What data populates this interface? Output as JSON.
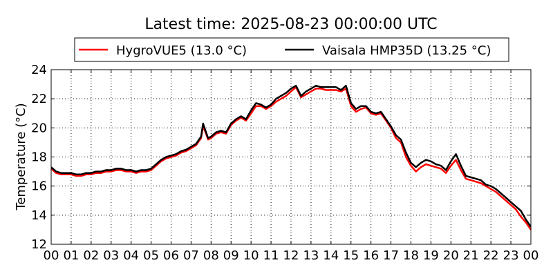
{
  "chart_data": {
    "type": "line",
    "title": "Latest time: 2025-08-23 00:00:00 UTC",
    "xlabel": "",
    "ylabel": "Temperature (°C)",
    "ylim": [
      12,
      24
    ],
    "xlim": [
      0,
      24
    ],
    "grid": true,
    "legend_position": "top",
    "x_ticks": [
      "00",
      "01",
      "02",
      "03",
      "04",
      "05",
      "06",
      "07",
      "08",
      "09",
      "10",
      "11",
      "12",
      "13",
      "14",
      "15",
      "16",
      "17",
      "18",
      "19",
      "20",
      "21",
      "22",
      "23",
      "00"
    ],
    "y_ticks": [
      "12",
      "14",
      "16",
      "18",
      "20",
      "22",
      "24"
    ],
    "x": [
      0,
      0.25,
      0.5,
      0.75,
      1,
      1.25,
      1.5,
      1.75,
      2,
      2.25,
      2.5,
      2.75,
      3,
      3.25,
      3.5,
      3.75,
      4,
      4.25,
      4.5,
      4.75,
      5,
      5.25,
      5.5,
      5.75,
      6,
      6.25,
      6.5,
      6.75,
      7,
      7.25,
      7.5,
      7.6,
      7.75,
      7.85,
      8,
      8.25,
      8.5,
      8.75,
      9,
      9.25,
      9.5,
      9.75,
      10,
      10.25,
      10.5,
      10.75,
      11,
      11.25,
      11.5,
      11.75,
      12,
      12.25,
      12.5,
      12.75,
      13,
      13.25,
      13.5,
      13.75,
      14,
      14.25,
      14.5,
      14.75,
      15,
      15.25,
      15.5,
      15.75,
      16,
      16.25,
      16.5,
      16.75,
      17,
      17.25,
      17.5,
      17.75,
      18,
      18.25,
      18.5,
      18.75,
      19,
      19.25,
      19.5,
      19.75,
      20,
      20.25,
      20.5,
      20.75,
      21,
      21.25,
      21.5,
      21.75,
      22,
      22.25,
      22.5,
      22.75,
      23,
      23.25,
      23.5,
      23.75,
      24
    ],
    "series": [
      {
        "name": "HygroVUE5 (13.0 °C)",
        "color": "#ff0000",
        "values": [
          17.2,
          16.9,
          16.8,
          16.8,
          16.8,
          16.7,
          16.7,
          16.8,
          16.8,
          16.9,
          16.9,
          17.0,
          17.0,
          17.1,
          17.1,
          17.0,
          17.0,
          16.9,
          17.0,
          17.0,
          17.1,
          17.4,
          17.7,
          17.9,
          18.0,
          18.1,
          18.3,
          18.4,
          18.6,
          18.8,
          19.3,
          20.1,
          19.6,
          19.2,
          19.3,
          19.6,
          19.7,
          19.6,
          20.2,
          20.5,
          20.7,
          20.5,
          21.0,
          21.5,
          21.5,
          21.3,
          21.5,
          21.8,
          22.0,
          22.2,
          22.5,
          22.8,
          22.1,
          22.3,
          22.5,
          22.7,
          22.7,
          22.6,
          22.6,
          22.6,
          22.5,
          22.7,
          21.5,
          21.1,
          21.3,
          21.4,
          21.0,
          20.9,
          21.0,
          20.5,
          20.0,
          19.3,
          19.0,
          18.0,
          17.4,
          17.0,
          17.3,
          17.5,
          17.4,
          17.3,
          17.2,
          16.9,
          17.4,
          17.8,
          17.1,
          16.5,
          16.4,
          16.3,
          16.2,
          16.0,
          15.8,
          15.6,
          15.3,
          15.0,
          14.7,
          14.4,
          13.9,
          13.5,
          13.0
        ]
      },
      {
        "name": "Vaisala HMP35D (13.25 °C)",
        "color": "#000000",
        "values": [
          17.3,
          17.0,
          16.9,
          16.9,
          16.9,
          16.8,
          16.8,
          16.9,
          16.9,
          17.0,
          17.0,
          17.1,
          17.1,
          17.2,
          17.2,
          17.1,
          17.1,
          17.0,
          17.1,
          17.1,
          17.2,
          17.5,
          17.8,
          18.0,
          18.1,
          18.2,
          18.4,
          18.5,
          18.7,
          18.9,
          19.4,
          20.3,
          19.7,
          19.3,
          19.4,
          19.7,
          19.8,
          19.7,
          20.3,
          20.6,
          20.8,
          20.6,
          21.2,
          21.7,
          21.6,
          21.4,
          21.6,
          22.0,
          22.2,
          22.4,
          22.7,
          22.9,
          22.2,
          22.5,
          22.7,
          22.9,
          22.8,
          22.8,
          22.8,
          22.8,
          22.6,
          22.9,
          21.7,
          21.3,
          21.5,
          21.5,
          21.1,
          21.0,
          21.1,
          20.6,
          20.1,
          19.5,
          19.2,
          18.3,
          17.6,
          17.3,
          17.6,
          17.8,
          17.7,
          17.5,
          17.4,
          17.1,
          17.7,
          18.2,
          17.4,
          16.7,
          16.6,
          16.5,
          16.4,
          16.1,
          16.0,
          15.8,
          15.5,
          15.2,
          14.9,
          14.6,
          14.3,
          13.7,
          13.2
        ]
      }
    ]
  }
}
